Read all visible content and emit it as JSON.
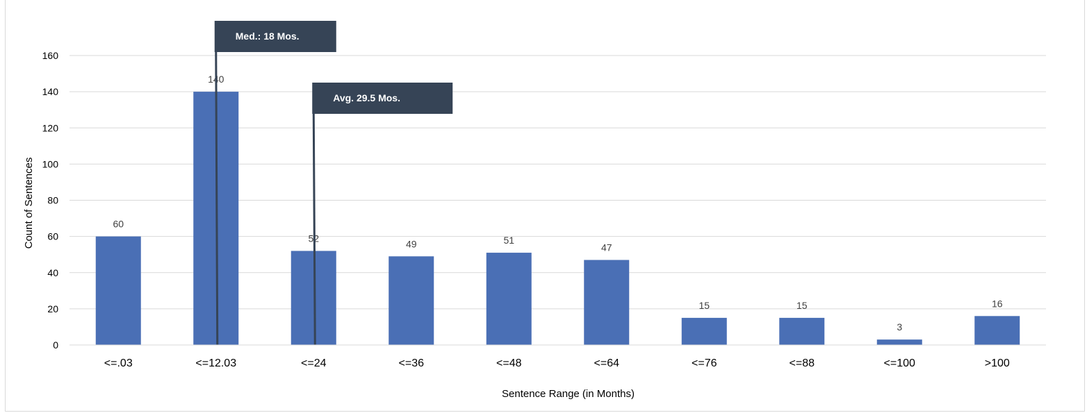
{
  "chart_data": {
    "type": "bar",
    "title": "",
    "xlabel": "Sentence Range (in Months)",
    "ylabel": "Count of Sentences",
    "categories": [
      "<=.03",
      "<=12.03",
      "<=24",
      "<=36",
      "<=48",
      "<=64",
      "<=76",
      "<=88",
      "<=100",
      ">100"
    ],
    "values": [
      60,
      140,
      52,
      49,
      51,
      47,
      15,
      15,
      3,
      16
    ],
    "ylim": [
      0,
      160
    ],
    "yticks": [
      0,
      20,
      40,
      60,
      80,
      100,
      120,
      140,
      160
    ],
    "grid": true,
    "legend": "none",
    "bar_color": "#4a6fb5",
    "annotations": [
      {
        "label": "Med.:  18 Mos.",
        "category_position": 1.5,
        "color": "#364456"
      },
      {
        "label": "Avg. 29.5 Mos.",
        "category_position": 2.5,
        "color": "#364456"
      }
    ]
  }
}
